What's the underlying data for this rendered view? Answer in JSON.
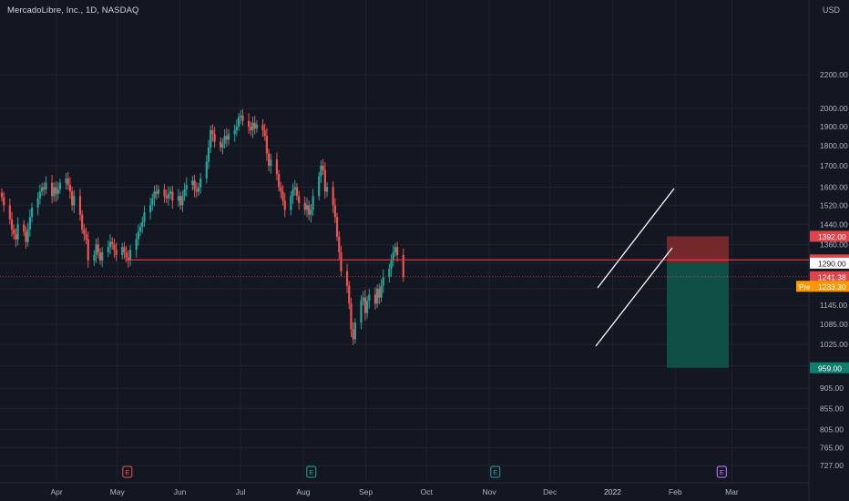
{
  "header": {
    "symbol_title": "MercadoLibre, Inc., 1D, NASDAQ",
    "currency": "USD"
  },
  "colors": {
    "background": "#131722",
    "grid": "#1f2330",
    "up": "#26a69a",
    "down": "#ef5350",
    "axis_text": "#b2b5be",
    "resistance_line": "#f23645",
    "channel": "#ffffff",
    "stop_zone": "#7f2a2e",
    "target_zone": "#0f5248",
    "pre_badge": "#ff9800"
  },
  "chart_data": {
    "type": "candlestick",
    "ylim": [
      715,
      2290
    ],
    "y_ticks": [
      727,
      765,
      805,
      855,
      905,
      965,
      1025,
      1085,
      1145,
      1200,
      1290,
      1360,
      1440,
      1520,
      1600,
      1700,
      1800,
      1900,
      2000,
      2200
    ],
    "y_tick_labels": [
      "727.00",
      "765.00",
      "805.00",
      "855.00",
      "905.00",
      "",
      "1025.00",
      "1085.00",
      "1145.00",
      "",
      "",
      "1360.00",
      "1440.00",
      "1520.00",
      "1600.00",
      "1700.00",
      "1800.00",
      "1900.00",
      "2000.00",
      "2200.00"
    ],
    "x_labels": [
      "Apr",
      "May",
      "Jun",
      "Jul",
      "Aug",
      "Sep",
      "Oct",
      "Nov",
      "Dec",
      "2022",
      "Feb",
      "Mar"
    ],
    "x_label_dates": [
      "2021-04-01",
      "2021-05-01",
      "2021-06-01",
      "2021-07-01",
      "2021-08-01",
      "2021-09-01",
      "2021-10-01",
      "2021-11-01",
      "2021-12-01",
      "2022-01-01",
      "2022-02-01",
      "2022-03-01"
    ],
    "x_range": [
      "2021-03-04",
      "2022-03-31"
    ],
    "candles_closes": [
      1555,
      1520,
      1460,
      1420,
      1400,
      1380,
      1440,
      1410,
      1370,
      1420,
      1470,
      1510,
      1550,
      1580,
      1600,
      1590,
      1620,
      1560,
      1600,
      1570,
      1590,
      1620,
      1640,
      1610,
      1580,
      1520,
      1560,
      1480,
      1420,
      1400,
      1380,
      1300,
      1320,
      1360,
      1330,
      1300,
      1330,
      1350,
      1370,
      1360,
      1340,
      1320,
      1350,
      1330,
      1310,
      1300,
      1340,
      1380,
      1410,
      1430,
      1450,
      1490,
      1520,
      1550,
      1580,
      1570,
      1590,
      1560,
      1550,
      1570,
      1580,
      1540,
      1560,
      1520,
      1560,
      1590,
      1610,
      1630,
      1590,
      1580,
      1600,
      1640,
      1720,
      1790,
      1880,
      1860,
      1820,
      1790,
      1810,
      1850,
      1830,
      1860,
      1880,
      1900,
      1950,
      1960,
      1930,
      1900,
      1880,
      1920,
      1890,
      1910,
      1880,
      1850,
      1760,
      1700,
      1730,
      1660,
      1600,
      1580,
      1540,
      1500,
      1560,
      1590,
      1600,
      1560,
      1530,
      1500,
      1520,
      1480,
      1500,
      1560,
      1650,
      1700,
      1680,
      1580,
      1600,
      1520,
      1470,
      1390,
      1330,
      1260,
      1210,
      1150,
      1070,
      1040,
      1090,
      1160,
      1170,
      1120,
      1160,
      1180,
      1150,
      1200,
      1170,
      1210,
      1240,
      1270,
      1300,
      1330,
      1350,
      1320,
      1241
    ],
    "candles_first_date": "2021-03-04",
    "resistance_line": 1302,
    "last_price": 1241.38,
    "stop_top": 1392,
    "entry": 1290,
    "target": 959,
    "pre_market": 1233.3,
    "earnings_events": [
      "2021-05-06",
      "2022-02-24"
    ],
    "dividend_events": [
      "2021-08-05",
      "2021-11-04"
    ],
    "price_labels": {
      "stop": "1392.00",
      "resistance": "1302.00",
      "entry": "1290.00",
      "last": "1241.38",
      "pre": "1233.30",
      "target": "959.00"
    },
    "pre_tag": "Pre"
  }
}
